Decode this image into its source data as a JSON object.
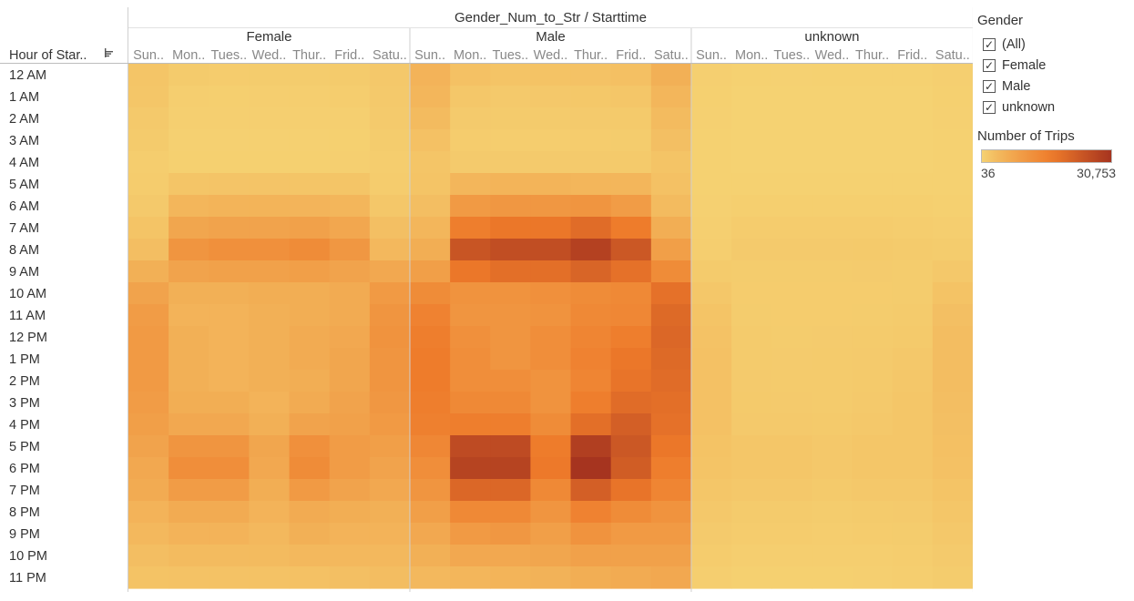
{
  "chart_data": {
    "type": "heatmap",
    "title": "Gender_Num_to_Str / Starttime",
    "row_header": "Hour of Star..",
    "groups": [
      "Female",
      "Male",
      "unknown"
    ],
    "columns": [
      "Sun..",
      "Mon..",
      "Tues..",
      "Wed..",
      "Thur..",
      "Frid..",
      "Satu.."
    ],
    "rows": [
      "12 AM",
      "1 AM",
      "2 AM",
      "3 AM",
      "4 AM",
      "5 AM",
      "6 AM",
      "7 AM",
      "8 AM",
      "9 AM",
      "10 AM",
      "11 AM",
      "12 PM",
      "1 PM",
      "2 PM",
      "3 PM",
      "4 PM",
      "5 PM",
      "6 PM",
      "7 PM",
      "8 PM",
      "9 PM",
      "10 PM",
      "11 PM"
    ],
    "color_range": [
      36,
      30753
    ],
    "colors": {
      "low": "#f5d272",
      "mid": "#ee7a2a",
      "high": "#a6341f"
    },
    "values": {
      "Female": [
        [
          1800,
          900,
          700,
          800,
          800,
          900,
          1300
        ],
        [
          1600,
          500,
          400,
          450,
          450,
          550,
          1200
        ],
        [
          1200,
          300,
          300,
          300,
          300,
          350,
          1000
        ],
        [
          900,
          200,
          200,
          200,
          200,
          250,
          800
        ],
        [
          600,
          250,
          250,
          250,
          250,
          300,
          600
        ],
        [
          700,
          1800,
          1900,
          1900,
          1800,
          1800,
          700
        ],
        [
          1200,
          4500,
          4800,
          4800,
          4700,
          4400,
          1500
        ],
        [
          2000,
          7500,
          8000,
          8000,
          8500,
          7200,
          2800
        ],
        [
          3000,
          11000,
          12000,
          12000,
          13000,
          10500,
          4000
        ],
        [
          5500,
          8000,
          8500,
          8500,
          9000,
          8000,
          7000
        ],
        [
          8000,
          5500,
          5500,
          6000,
          6000,
          6500,
          10000
        ],
        [
          9500,
          5000,
          5000,
          5500,
          6000,
          6500,
          11000
        ],
        [
          10000,
          5500,
          5000,
          5500,
          6500,
          7000,
          11500
        ],
        [
          10000,
          5500,
          5000,
          5500,
          6500,
          7500,
          11000
        ],
        [
          10000,
          5500,
          5000,
          5500,
          6000,
          7500,
          11000
        ],
        [
          9500,
          6000,
          6000,
          5000,
          6500,
          8000,
          10500
        ],
        [
          9000,
          7000,
          7000,
          5500,
          8000,
          8500,
          10000
        ],
        [
          8000,
          11000,
          11000,
          7500,
          12000,
          9500,
          9000
        ],
        [
          7000,
          12500,
          12500,
          7000,
          13000,
          9500,
          8000
        ],
        [
          6500,
          9500,
          9500,
          6000,
          10000,
          8000,
          7000
        ],
        [
          5000,
          6500,
          6500,
          5000,
          6500,
          6000,
          5500
        ],
        [
          4000,
          5000,
          5000,
          4000,
          5500,
          5000,
          5000
        ],
        [
          3000,
          3500,
          3500,
          3500,
          4000,
          4000,
          4000
        ],
        [
          2200,
          2300,
          2300,
          2300,
          2500,
          2800,
          3200
        ]
      ],
      "Male": [
        [
          5000,
          2500,
          2000,
          2200,
          2300,
          2600,
          5500
        ],
        [
          4500,
          1500,
          1200,
          1300,
          1400,
          1600,
          4500
        ],
        [
          3500,
          1000,
          900,
          900,
          1000,
          1100,
          3500
        ],
        [
          2500,
          700,
          600,
          600,
          700,
          800,
          2800
        ],
        [
          1800,
          1000,
          1000,
          1000,
          1000,
          1100,
          2000
        ],
        [
          2000,
          4500,
          4800,
          4800,
          4500,
          4500,
          2500
        ],
        [
          3000,
          10000,
          10500,
          10500,
          11000,
          9500,
          3500
        ],
        [
          4500,
          16000,
          17500,
          17500,
          19500,
          16500,
          6000
        ],
        [
          6000,
          24000,
          25500,
          25500,
          28000,
          23500,
          9000
        ],
        [
          9000,
          17500,
          19000,
          19000,
          21000,
          18500,
          13000
        ],
        [
          13000,
          11500,
          11500,
          12000,
          13000,
          13500,
          18500
        ],
        [
          15000,
          11000,
          11000,
          11500,
          13500,
          14000,
          20000
        ],
        [
          16000,
          12000,
          11000,
          12500,
          14500,
          16000,
          20500
        ],
        [
          16500,
          12500,
          11000,
          12500,
          15000,
          17500,
          20000
        ],
        [
          16500,
          12500,
          12500,
          11500,
          14500,
          18000,
          19500
        ],
        [
          16000,
          13500,
          13500,
          11500,
          16000,
          19500,
          19000
        ],
        [
          15500,
          16000,
          16000,
          13000,
          19000,
          22000,
          18500
        ],
        [
          14000,
          26000,
          26000,
          16500,
          28500,
          23500,
          17500
        ],
        [
          12500,
          27500,
          27500,
          17000,
          30753,
          22500,
          16000
        ],
        [
          11000,
          20500,
          20500,
          13500,
          22000,
          18000,
          14500
        ],
        [
          9000,
          13500,
          13500,
          11000,
          15000,
          13000,
          11500
        ],
        [
          7000,
          10000,
          10500,
          9000,
          11500,
          10000,
          10000
        ],
        [
          5500,
          7000,
          7000,
          7500,
          8500,
          8500,
          8500
        ],
        [
          4000,
          4500,
          4800,
          5200,
          6000,
          6500,
          7000
        ]
      ],
      "unknown": [
        [
          300,
          100,
          80,
          90,
          90,
          110,
          300
        ],
        [
          250,
          60,
          50,
          50,
          50,
          70,
          250
        ],
        [
          200,
          40,
          36,
          36,
          40,
          50,
          200
        ],
        [
          150,
          36,
          36,
          36,
          36,
          40,
          150
        ],
        [
          100,
          40,
          40,
          40,
          40,
          45,
          100
        ],
        [
          120,
          150,
          150,
          150,
          150,
          150,
          120
        ],
        [
          200,
          400,
          400,
          400,
          400,
          380,
          250
        ],
        [
          350,
          700,
          700,
          700,
          750,
          650,
          500
        ],
        [
          500,
          1000,
          1000,
          1000,
          1100,
          950,
          800
        ],
        [
          900,
          800,
          800,
          800,
          850,
          800,
          1300
        ],
        [
          1500,
          700,
          700,
          700,
          750,
          800,
          2200
        ],
        [
          2000,
          800,
          700,
          750,
          800,
          900,
          2800
        ],
        [
          2300,
          900,
          800,
          850,
          950,
          1100,
          3200
        ],
        [
          2400,
          950,
          850,
          900,
          1000,
          1300,
          3200
        ],
        [
          2500,
          1000,
          900,
          950,
          1100,
          1500,
          3100
        ],
        [
          2500,
          1100,
          1000,
          950,
          1200,
          1600,
          3000
        ],
        [
          2400,
          1200,
          1200,
          1100,
          1300,
          1700,
          2800
        ],
        [
          2200,
          1600,
          1600,
          1300,
          1600,
          1700,
          2600
        ],
        [
          2000,
          1600,
          1600,
          1300,
          1600,
          1600,
          2400
        ],
        [
          1700,
          1300,
          1300,
          1100,
          1300,
          1300,
          2000
        ],
        [
          1300,
          900,
          900,
          800,
          900,
          1000,
          1600
        ],
        [
          1000,
          700,
          700,
          650,
          750,
          800,
          1300
        ],
        [
          700,
          450,
          450,
          450,
          500,
          600,
          1000
        ],
        [
          500,
          250,
          250,
          280,
          320,
          450,
          800
        ]
      ]
    }
  },
  "filter": {
    "title": "Gender",
    "items": [
      {
        "label": "(All)",
        "checked": true
      },
      {
        "label": "Female",
        "checked": true
      },
      {
        "label": "Male",
        "checked": true
      },
      {
        "label": "unknown",
        "checked": true
      }
    ],
    "check_mark": "✓"
  },
  "legend": {
    "title": "Number of Trips",
    "min_label": "36",
    "max_label": "30,753"
  }
}
